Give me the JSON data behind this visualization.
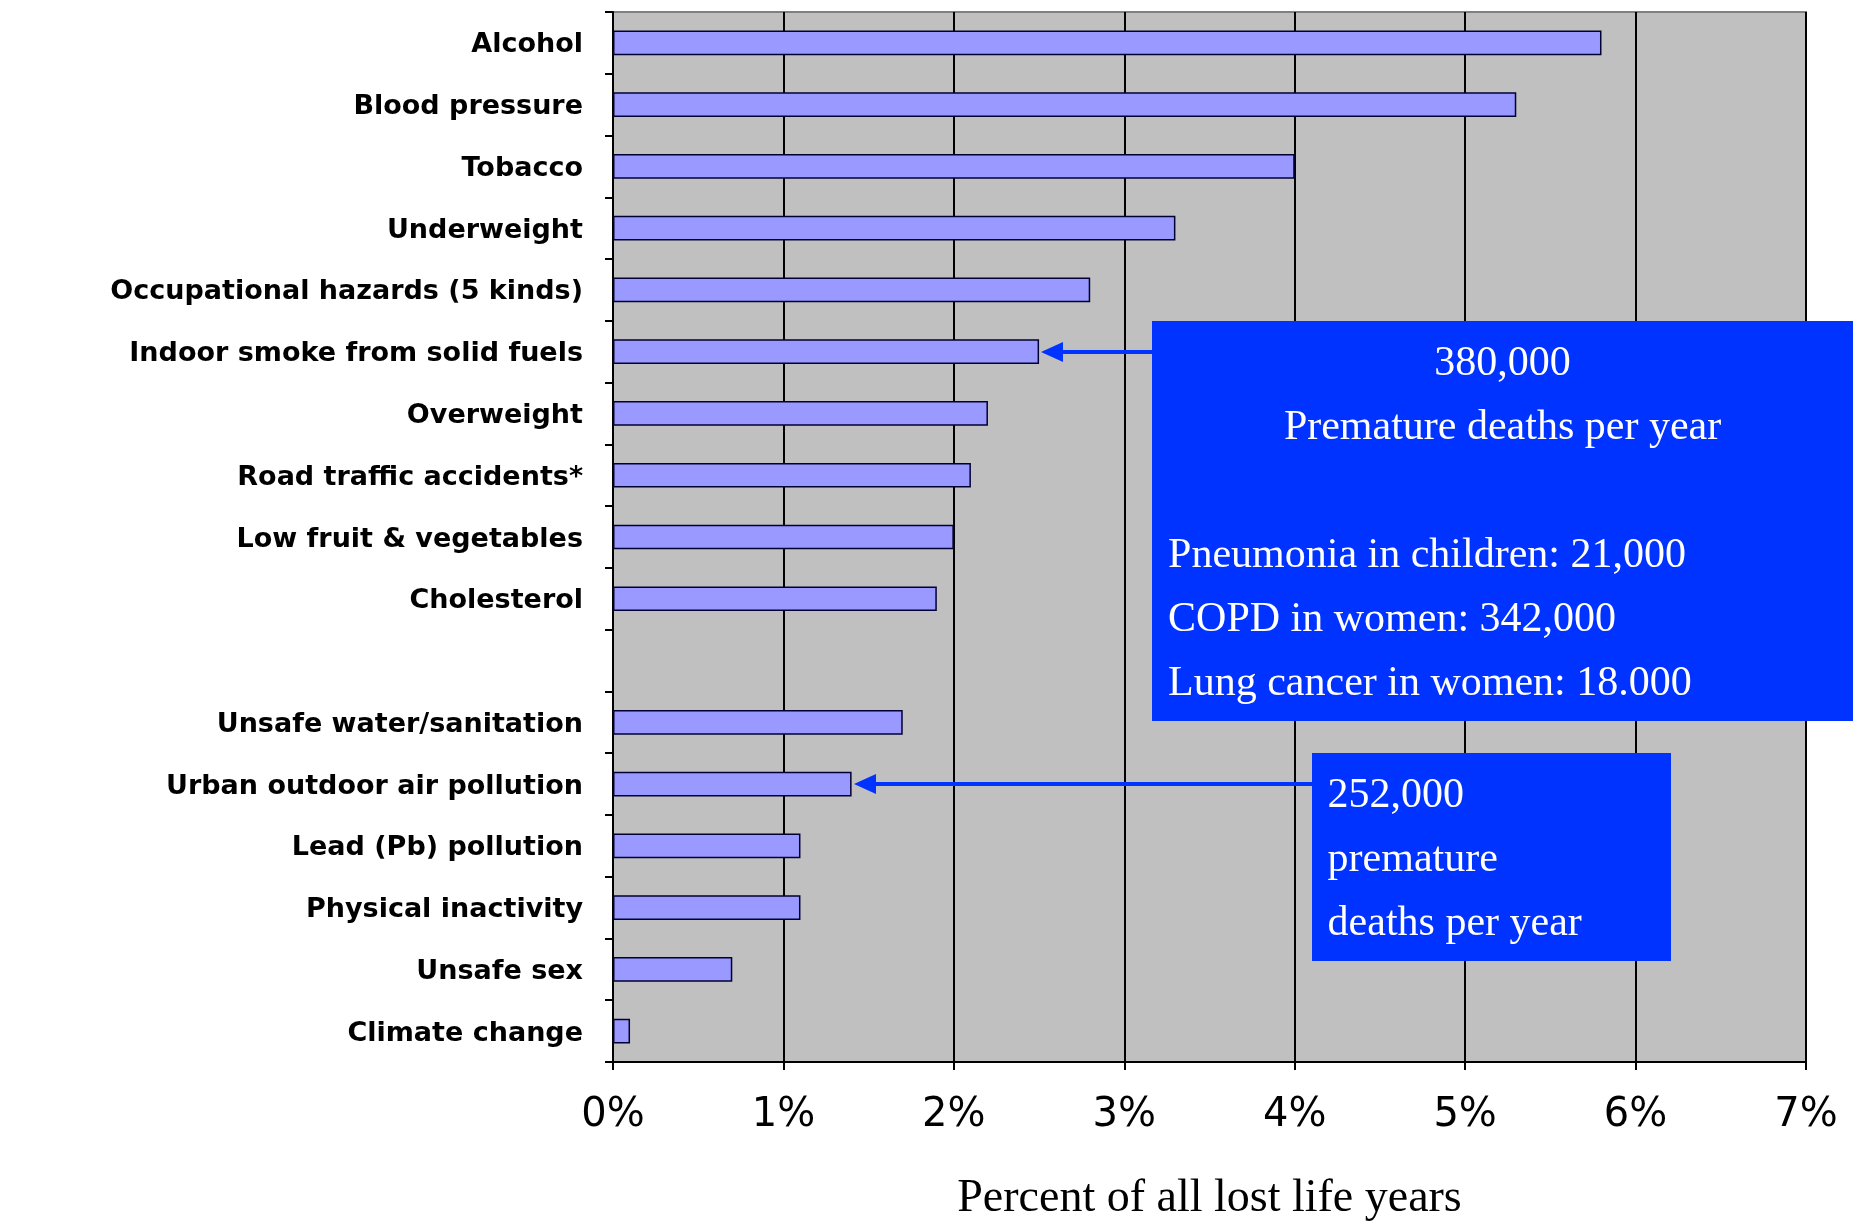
{
  "chart_data": {
    "type": "bar",
    "orientation": "horizontal",
    "categories": [
      "Alcohol",
      "Blood pressure",
      "Tobacco",
      "Underweight",
      "Occupational hazards (5 kinds)",
      "Indoor smoke from solid fuels",
      "Overweight",
      "Road traffic accidents*",
      "Low fruit & vegetables",
      "Cholesterol",
      null,
      "Unsafe water/sanitation",
      "Urban outdoor air pollution",
      "Lead (Pb) pollution",
      "Physical inactivity",
      "Unsafe sex",
      "Climate change"
    ],
    "values": [
      5.8,
      5.3,
      4.0,
      3.3,
      2.8,
      2.5,
      2.2,
      2.1,
      2.0,
      1.9,
      null,
      1.7,
      1.4,
      1.1,
      1.1,
      0.7,
      0.1
    ],
    "color": "#9999ff",
    "xlabel": "Percent of all lost life years",
    "xlim": [
      0,
      7
    ],
    "xticks": [
      {
        "value": 0,
        "label": "0%"
      },
      {
        "value": 1,
        "label": "1%"
      },
      {
        "value": 2,
        "label": "2%"
      },
      {
        "value": 3,
        "label": "3%"
      },
      {
        "value": 4,
        "label": "4%"
      },
      {
        "value": 5,
        "label": "5%"
      },
      {
        "value": 6,
        "label": "6%"
      },
      {
        "value": 7,
        "label": "7%"
      }
    ],
    "grid": "x",
    "annotations": [
      "380,000\nPremature deaths per year",
      "Pneumonia in children: 21,000\nCOPD in women: 342,000\nLung cancer in women: 18.000",
      "252,000\npremature\ndeaths per year"
    ]
  }
}
